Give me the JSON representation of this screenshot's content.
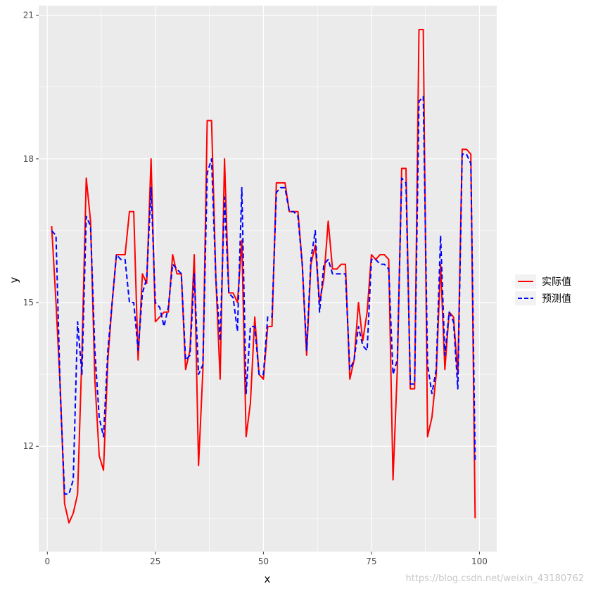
{
  "chart_data": {
    "type": "line",
    "xlabel": "x",
    "ylabel": "y",
    "xlim": [
      -2,
      104
    ],
    "ylim": [
      9.8,
      21.2
    ],
    "x_ticks": [
      0,
      25,
      50,
      75,
      100
    ],
    "y_ticks": [
      12,
      15,
      18,
      21
    ],
    "grid": true,
    "legend_position": "right",
    "series": [
      {
        "name": "实际值",
        "color": "#FF0000",
        "line_style": "solid",
        "x": [
          1,
          2,
          3,
          4,
          5,
          6,
          7,
          8,
          9,
          10,
          11,
          12,
          13,
          14,
          15,
          16,
          17,
          18,
          19,
          20,
          21,
          22,
          23,
          24,
          25,
          26,
          27,
          28,
          29,
          30,
          31,
          32,
          33,
          34,
          35,
          36,
          37,
          38,
          39,
          40,
          41,
          42,
          43,
          44,
          45,
          46,
          47,
          48,
          49,
          50,
          51,
          52,
          53,
          54,
          55,
          56,
          57,
          58,
          59,
          60,
          61,
          62,
          63,
          64,
          65,
          66,
          67,
          68,
          69,
          70,
          71,
          72,
          73,
          74,
          75,
          76,
          77,
          78,
          79,
          80,
          81,
          82,
          83,
          84,
          85,
          86,
          87,
          88,
          89,
          90,
          91,
          92,
          93,
          94,
          95,
          96,
          97,
          98,
          99
        ],
        "values": [
          16.6,
          15.0,
          13.2,
          10.8,
          10.4,
          10.6,
          11.0,
          13.9,
          17.6,
          16.7,
          13.4,
          11.8,
          11.5,
          13.8,
          15.0,
          16.0,
          16.0,
          16.0,
          16.9,
          16.9,
          13.8,
          15.6,
          15.4,
          18.0,
          14.6,
          14.7,
          14.8,
          14.8,
          16.0,
          15.6,
          15.6,
          13.6,
          14.0,
          16.0,
          11.6,
          13.6,
          18.8,
          18.8,
          15.5,
          13.4,
          18.0,
          15.2,
          15.2,
          15.0,
          16.3,
          12.2,
          12.9,
          14.7,
          13.5,
          13.4,
          14.5,
          14.5,
          17.5,
          17.5,
          17.5,
          16.9,
          16.9,
          16.9,
          15.8,
          13.9,
          15.8,
          16.2,
          15.0,
          15.5,
          16.7,
          15.7,
          15.7,
          15.8,
          15.8,
          13.4,
          13.8,
          15.0,
          14.2,
          14.8,
          16.0,
          15.9,
          16.0,
          16.0,
          15.9,
          11.3,
          13.6,
          17.8,
          17.8,
          13.2,
          13.2,
          20.7,
          20.7,
          12.2,
          12.6,
          13.5,
          15.8,
          13.6,
          14.8,
          14.7,
          13.5,
          18.2,
          18.2,
          18.1,
          10.5
        ]
      },
      {
        "name": "预测值",
        "color": "#0000FF",
        "line_style": "dashed",
        "x": [
          1,
          2,
          3,
          4,
          5,
          6,
          7,
          8,
          9,
          10,
          11,
          12,
          13,
          14,
          15,
          16,
          17,
          18,
          19,
          20,
          21,
          22,
          23,
          24,
          25,
          26,
          27,
          28,
          29,
          30,
          31,
          32,
          33,
          34,
          35,
          36,
          37,
          38,
          39,
          40,
          41,
          42,
          43,
          44,
          45,
          46,
          47,
          48,
          49,
          50,
          51,
          52,
          53,
          54,
          55,
          56,
          57,
          58,
          59,
          60,
          61,
          62,
          63,
          64,
          65,
          66,
          67,
          68,
          69,
          70,
          71,
          72,
          73,
          74,
          75,
          76,
          77,
          78,
          79,
          80,
          81,
          82,
          83,
          84,
          85,
          86,
          87,
          88,
          89,
          90,
          91,
          92,
          93,
          94,
          95,
          96,
          97,
          98,
          99
        ],
        "values": [
          16.5,
          16.4,
          13.1,
          11.0,
          11.0,
          11.3,
          14.6,
          13.5,
          16.8,
          16.6,
          14.0,
          12.6,
          12.2,
          14.0,
          15.0,
          16.0,
          15.9,
          15.9,
          15.0,
          15.0,
          14.0,
          15.2,
          15.5,
          17.4,
          15.0,
          14.9,
          14.5,
          14.9,
          15.8,
          15.7,
          15.6,
          13.8,
          13.9,
          15.6,
          13.5,
          13.7,
          17.7,
          18.0,
          15.5,
          14.2,
          17.2,
          15.2,
          15.1,
          14.4,
          17.4,
          13.1,
          14.5,
          14.5,
          13.5,
          13.5,
          14.7,
          14.7,
          17.3,
          17.4,
          17.4,
          16.9,
          16.9,
          16.8,
          15.8,
          14.0,
          15.9,
          16.5,
          14.8,
          15.8,
          15.9,
          15.6,
          15.6,
          15.6,
          15.6,
          13.6,
          13.8,
          14.5,
          14.1,
          14.0,
          15.9,
          15.9,
          15.8,
          15.8,
          15.7,
          13.5,
          13.8,
          17.6,
          17.5,
          13.3,
          13.3,
          19.2,
          19.3,
          13.7,
          13.1,
          13.6,
          16.4,
          13.9,
          14.8,
          14.6,
          13.2,
          18.1,
          18.1,
          17.9,
          11.7
        ]
      }
    ]
  },
  "watermark": "https://blog.csdn.net/weixin_43180762"
}
